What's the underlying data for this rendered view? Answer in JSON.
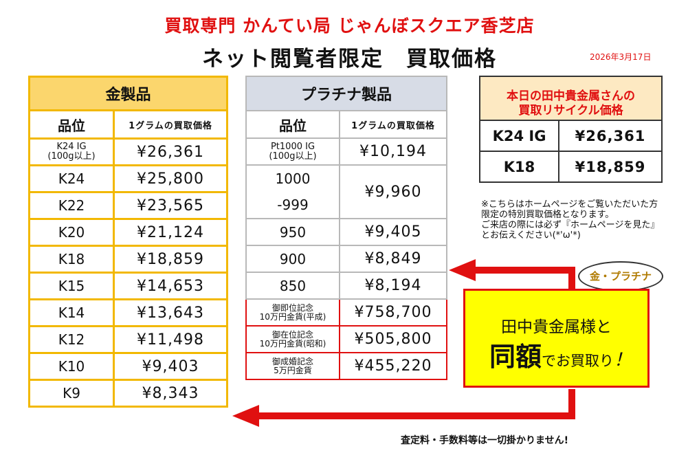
{
  "header": {
    "store": "買取専門 かんてい局 じゃんぼスクエア香芝店",
    "title": "ネット閲覧者限定　買取価格",
    "date": "2026年3月17日"
  },
  "gold": {
    "title": "金製品",
    "col_grade": "品位",
    "col_price": "1グラムの買取価格",
    "rows": [
      {
        "grade": "K24 IG\n(100g以上)",
        "price": "¥26,361"
      },
      {
        "grade": "K24",
        "price": "¥25,800"
      },
      {
        "grade": "K22",
        "price": "¥23,565"
      },
      {
        "grade": "K20",
        "price": "¥21,124"
      },
      {
        "grade": "K18",
        "price": "¥18,859"
      },
      {
        "grade": "K15",
        "price": "¥14,653"
      },
      {
        "grade": "K14",
        "price": "¥13,643"
      },
      {
        "grade": "K12",
        "price": "¥11,498"
      },
      {
        "grade": "K10",
        "price": "¥9,403"
      },
      {
        "grade": "K9",
        "price": "¥8,343"
      }
    ]
  },
  "platinum": {
    "title": "プラチナ製品",
    "col_grade": "品位",
    "col_price": "1グラムの買取価格",
    "rows": [
      {
        "grade": "Pt1000 IG\n(100g以上)",
        "price": "¥10,194"
      },
      {
        "grade_top": "1000",
        "grade_bottom": "-999",
        "price": "¥9,960"
      },
      {
        "grade": "950",
        "price": "¥9,405"
      },
      {
        "grade": "900",
        "price": "¥8,849"
      },
      {
        "grade": "850",
        "price": "¥8,194"
      }
    ],
    "coins": [
      {
        "name": "御即位記念\n10万円金貨(平成)",
        "price": "¥758,700"
      },
      {
        "name": "御在位記念\n10万円金貨(昭和)",
        "price": "¥505,800"
      },
      {
        "name": "御成婚記念\n5万円金貨",
        "price": "¥455,220"
      }
    ]
  },
  "tanaka": {
    "heading": "本日の田中貴金属さんの\n買取リサイクル価格",
    "rows": [
      {
        "grade": "K24 IG",
        "price": "¥26,361"
      },
      {
        "grade": "K18",
        "price": "¥18,859"
      }
    ]
  },
  "note": "※こちらはホームページをご覧いただいた方限定の特別買取価格となります。\nご来店の際には必ず『ホームページを見た』とお伝えください(*'ω'*)",
  "badge": "金・プラチナ",
  "promo": {
    "line1": "田中貴金属様と",
    "big": "同額",
    "rest": "でお買取り",
    "bang": "！"
  },
  "footer": "査定料・手数料等は一切掛かりません!",
  "colors": {
    "accent_red": "#e01010",
    "gold_header": "#fbd66d",
    "gold_border": "#f2b800",
    "platinum_header": "#d7dce6",
    "promo_yellow": "#ffff00"
  }
}
